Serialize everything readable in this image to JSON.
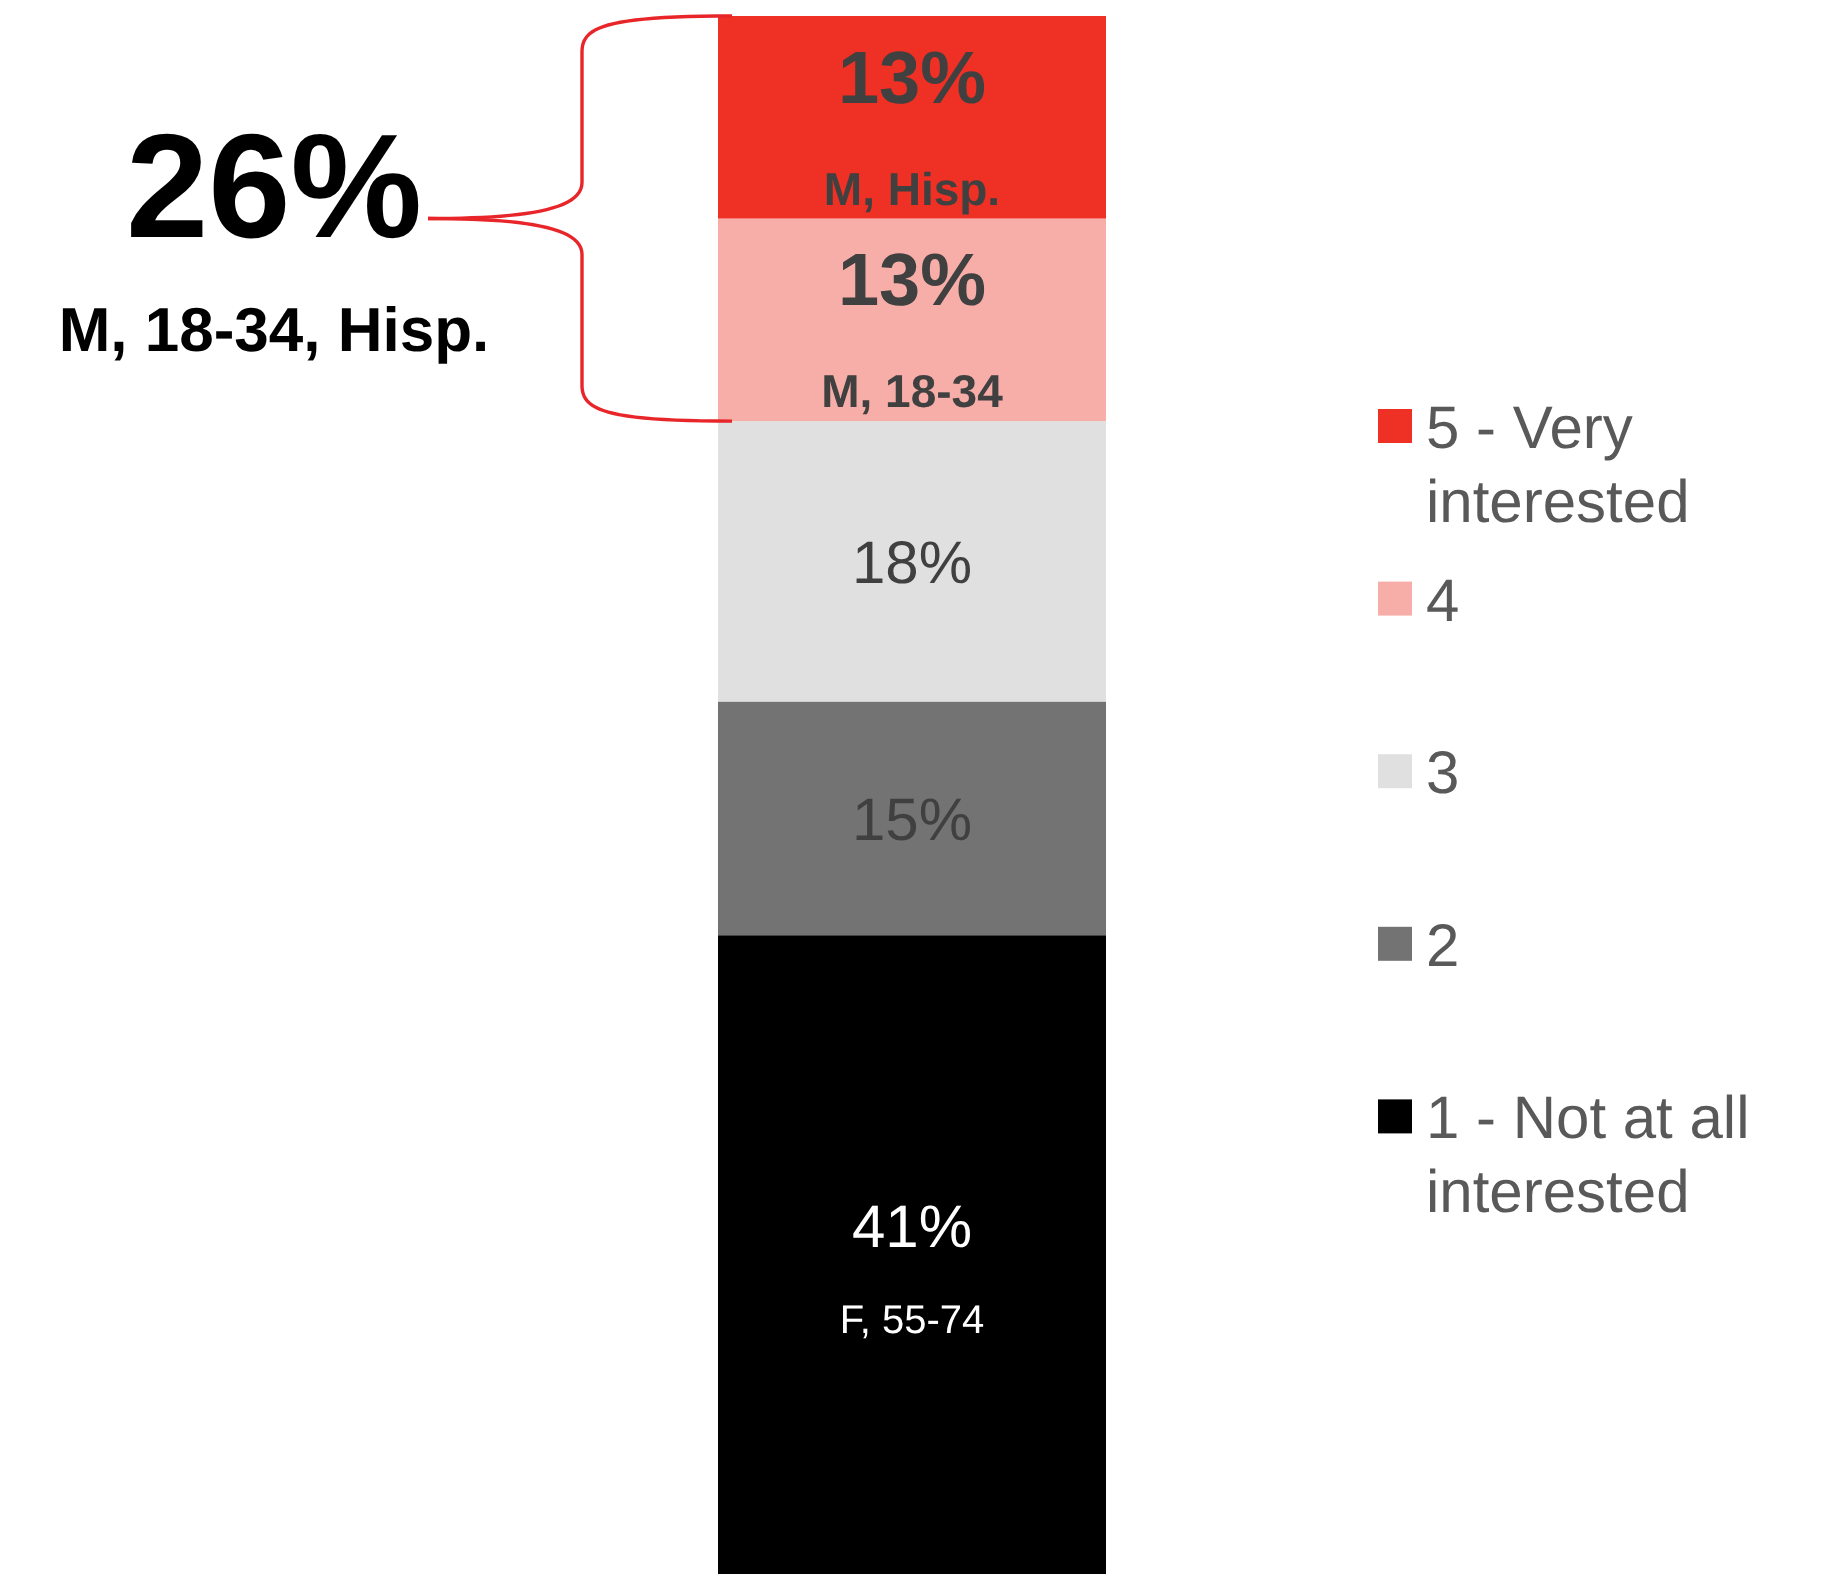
{
  "chart_data": {
    "type": "bar",
    "stacked": true,
    "categories": [
      null
    ],
    "series": [
      {
        "name": "1 - Not at all interested",
        "color": "#000000",
        "values": [
          41
        ],
        "value_labels": [
          "41%"
        ]
      },
      {
        "name": "2",
        "color": "#737373",
        "values": [
          15
        ],
        "value_labels": [
          "15%"
        ]
      },
      {
        "name": "3",
        "color": "#e0e0e0",
        "values": [
          18
        ],
        "value_labels": [
          "18%"
        ]
      },
      {
        "name": "4",
        "color": "#f8aea8",
        "values": [
          13
        ],
        "value_labels": [
          "13%"
        ]
      },
      {
        "name": "5 - Very interested",
        "color": "#ee3124",
        "values": [
          13
        ],
        "value_labels": [
          "13%"
        ]
      }
    ],
    "annotations": [
      "26%",
      "M, 18-34, Hisp.",
      "M, Hisp.",
      "M, 18-34",
      "F, 55-74"
    ],
    "legend": "right",
    "tick_labels": false
  }
}
